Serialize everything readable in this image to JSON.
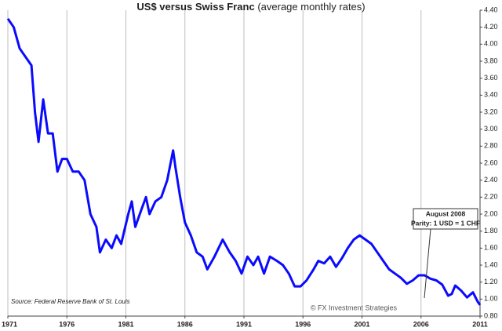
{
  "chart_data": {
    "type": "line",
    "title": "US$ versus Swiss Franc",
    "subtitle": "(average monthly rates)",
    "x": [
      1971.0,
      1971.5,
      1972.0,
      1972.5,
      1973.0,
      1973.3,
      1973.6,
      1974.0,
      1974.4,
      1974.8,
      1975.2,
      1975.6,
      1976.0,
      1976.5,
      1977.0,
      1977.5,
      1978.0,
      1978.5,
      1978.8,
      1979.3,
      1979.8,
      1980.2,
      1980.6,
      1981.2,
      1981.5,
      1981.8,
      1982.3,
      1982.7,
      1983.0,
      1983.5,
      1984.0,
      1984.5,
      1985.0,
      1985.2,
      1985.6,
      1986.0,
      1986.5,
      1987.0,
      1987.5,
      1987.9,
      1988.5,
      1989.2,
      1989.8,
      1990.3,
      1990.8,
      1991.3,
      1991.8,
      1992.2,
      1992.7,
      1993.2,
      1993.8,
      1994.3,
      1994.8,
      1995.3,
      1995.8,
      1996.3,
      1996.9,
      1997.3,
      1997.8,
      1998.3,
      1998.8,
      1999.3,
      1999.8,
      2000.3,
      2000.8,
      2001.3,
      2001.8,
      2002.3,
      2002.8,
      2003.3,
      2003.8,
      2004.3,
      2004.8,
      2005.3,
      2005.8,
      2006.3,
      2006.8,
      2007.3,
      2007.8,
      2008.3,
      2008.6,
      2008.9,
      2009.4,
      2009.9,
      2010.4,
      2010.8,
      2011.0
    ],
    "values": [
      4.3,
      4.2,
      3.95,
      3.85,
      3.75,
      3.2,
      2.85,
      3.35,
      2.95,
      2.95,
      2.5,
      2.65,
      2.65,
      2.5,
      2.5,
      2.4,
      2.0,
      1.85,
      1.55,
      1.7,
      1.6,
      1.75,
      1.65,
      2.0,
      2.15,
      1.85,
      2.05,
      2.2,
      2.0,
      2.15,
      2.2,
      2.4,
      2.75,
      2.55,
      2.2,
      1.9,
      1.75,
      1.55,
      1.5,
      1.35,
      1.5,
      1.7,
      1.55,
      1.45,
      1.3,
      1.5,
      1.4,
      1.5,
      1.3,
      1.5,
      1.45,
      1.4,
      1.3,
      1.15,
      1.15,
      1.22,
      1.35,
      1.45,
      1.42,
      1.5,
      1.38,
      1.48,
      1.6,
      1.7,
      1.75,
      1.7,
      1.65,
      1.55,
      1.45,
      1.35,
      1.3,
      1.25,
      1.18,
      1.22,
      1.28,
      1.28,
      1.24,
      1.22,
      1.17,
      1.04,
      1.06,
      1.16,
      1.1,
      1.02,
      1.08,
      0.97,
      0.93
    ],
    "color": "#0a0aff",
    "xlim": [
      1971,
      2011
    ],
    "xticks": [
      1971,
      1976,
      1981,
      1986,
      1991,
      1996,
      2001,
      2006,
      2011
    ],
    "ylim": [
      0.8,
      4.4
    ],
    "yticks": [
      {
        "value": 0.8,
        "label": "0.80"
      },
      {
        "value": 1.0,
        "label": "1.00"
      },
      {
        "value": 1.2,
        "label": "1.20"
      },
      {
        "value": 1.4,
        "label": "1.40"
      },
      {
        "value": 1.6,
        "label": "1.60"
      },
      {
        "value": 1.8,
        "label": "1.80"
      },
      {
        "value": 2.0,
        "label": "2.00"
      },
      {
        "value": 2.2,
        "label": "2.20"
      },
      {
        "value": 2.4,
        "label": "2.40"
      },
      {
        "value": 2.6,
        "label": "2.60"
      },
      {
        "value": 2.8,
        "label": "2.80"
      },
      {
        "value": 3.0,
        "label": "3.00"
      },
      {
        "value": 3.2,
        "label": "3.20"
      },
      {
        "value": 3.4,
        "label": "3.40"
      },
      {
        "value": 3.6,
        "label": "3.60"
      },
      {
        "value": 3.8,
        "label": "3.80"
      },
      {
        "value": 4.0,
        "label": "4.00"
      },
      {
        "value": 4.2,
        "label": "4.20"
      },
      {
        "value": 4.4,
        "label": "4.40"
      }
    ],
    "grid": "x",
    "annotation": {
      "title": "August 2008",
      "text": "Parity:  1 USD = 1 CHF"
    },
    "source": "Source: Federal Reserve Bank of St. Louis",
    "credit": "© FX Investment Strategies"
  }
}
